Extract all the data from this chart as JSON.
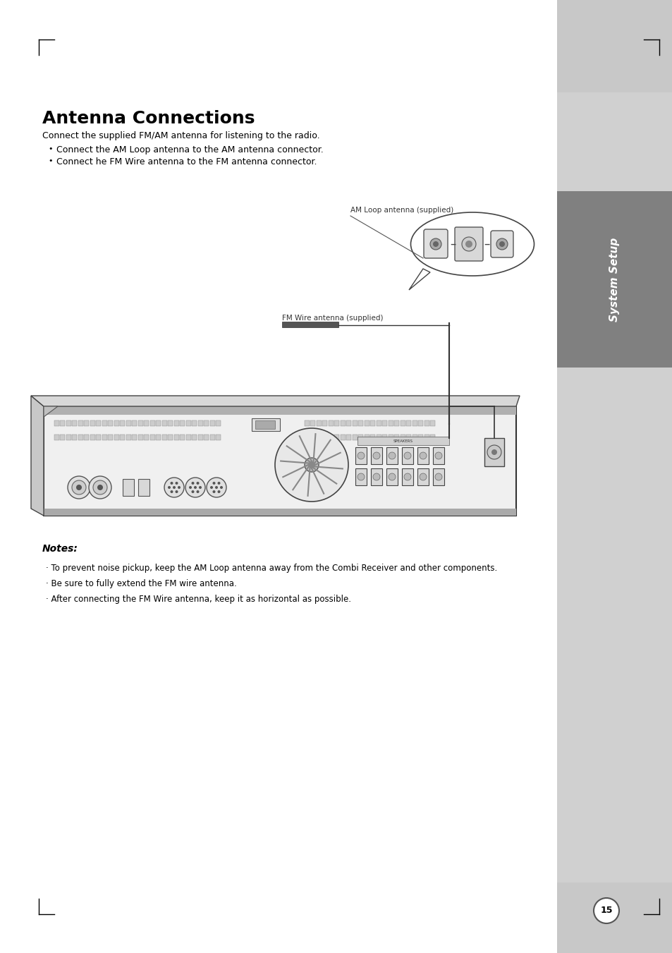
{
  "page_bg": "#ffffff",
  "right_panel_bg": "#d0d0d0",
  "right_tab_bg": "#808080",
  "right_tab_text": "System Setup",
  "right_tab_text_color": "#ffffff",
  "page_number": "15",
  "title": "Antenna Connections",
  "intro_text": "Connect the supplied FM/AM antenna for listening to the radio.",
  "bullets": [
    "Connect the AM Loop antenna to the AM antenna connector.",
    "Connect he FM Wire antenna to the FM antenna connector."
  ],
  "am_label": "AM Loop antenna (supplied)",
  "fm_label": "FM Wire antenna (supplied)",
  "notes_title": "Notes:",
  "notes": [
    "To prevent noise pickup, keep the AM Loop antenna away from the Combi Receiver and other components.",
    "Be sure to fully extend the FM wire antenna.",
    "After connecting the FM Wire antenna, keep it as horizontal as possible."
  ]
}
